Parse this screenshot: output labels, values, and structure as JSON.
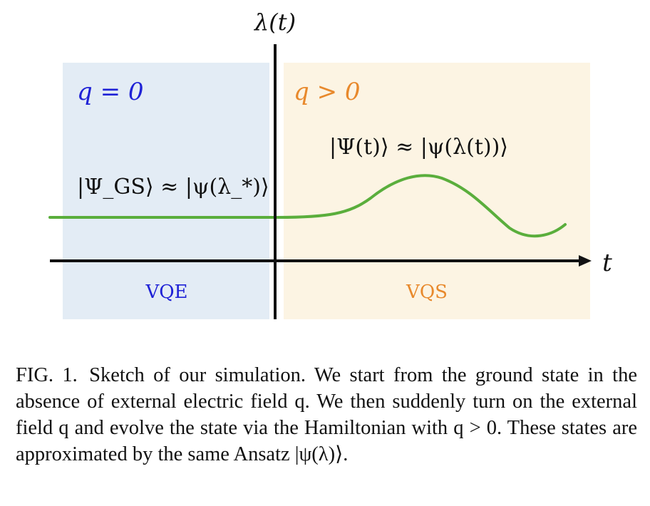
{
  "figure": {
    "y_axis_label": "λ(t)",
    "x_axis_label": "t",
    "left_region": {
      "condition": "q = 0",
      "method_label": "VQE",
      "state_equation": "|Ψ_GS⟩ ≈ |ψ(λ_*)⟩",
      "color": "#1f22d6",
      "background": "#e3ecf5"
    },
    "right_region": {
      "condition": "q > 0",
      "method_label": "VQS",
      "state_equation": "|Ψ(t)⟩ ≈ |ψ(λ(t))⟩",
      "color": "#e8892c",
      "background": "#fcf4e3"
    },
    "curve_color": "#5aae3c",
    "curve_description_icon": "lambda-trajectory-curve"
  },
  "caption": {
    "label": "FIG. 1.",
    "text": "Sketch of our simulation. We start from the ground state in the absence of external electric field q. We then suddenly turn on the external field q and evolve the state via the Hamiltonian with q > 0. These states are approximated by the same Ansatz |ψ(λ)⟩."
  }
}
